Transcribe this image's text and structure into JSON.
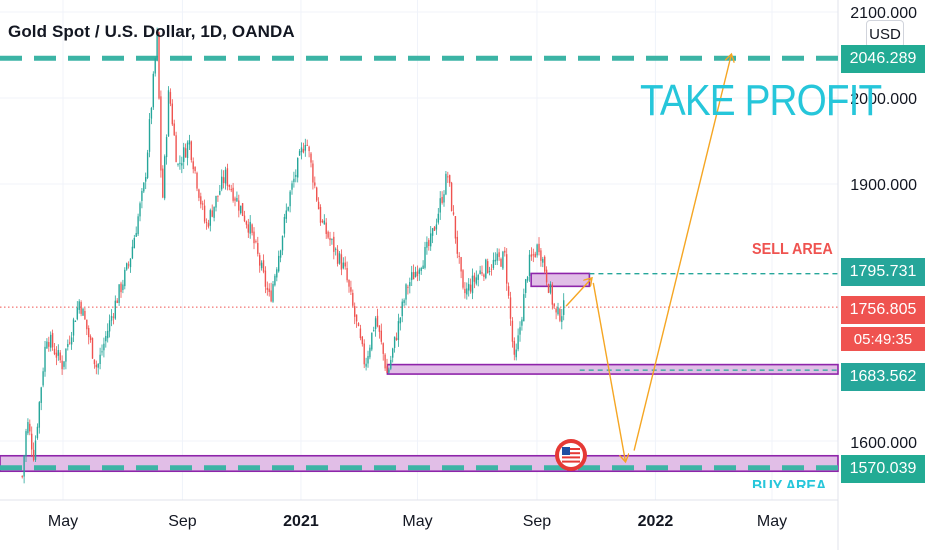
{
  "title": "Gold Spot / U.S. Dollar, 1D, OANDA",
  "currency_button": "USD",
  "annotations": {
    "take_profit": "TAKE PROFIT",
    "sell_area": "SELL AREA",
    "buy_area": "BUY AREA"
  },
  "price_tags": {
    "target": "2046.289",
    "sell": "1795.731",
    "last": "1756.805",
    "countdown": "05:49:35",
    "support": "1683.562",
    "buy": "1570.039"
  },
  "colors": {
    "up": "#26a69a",
    "down": "#ef5350",
    "zone_fill": "#e1bee7",
    "zone_border": "#8e24aa",
    "arrow": "#f5a623",
    "target_line": "#3cb4a5",
    "take_profit_text": "#26c6da"
  },
  "chart_data": {
    "type": "candlestick",
    "title": "Gold Spot / U.S. Dollar, 1D, OANDA",
    "x_tick_labels": [
      "May",
      "Sep",
      "2021",
      "May",
      "Sep",
      "2022",
      "May"
    ],
    "y_tick_labels": [
      "2100.000",
      "2000.000",
      "1900.000",
      "1600.000"
    ],
    "y_range": [
      1545,
      2110
    ],
    "series_path": [
      [
        "2020-03-20",
        1560
      ],
      [
        "2020-03-25",
        1625
      ],
      [
        "2020-04-01",
        1585
      ],
      [
        "2020-04-14",
        1725
      ],
      [
        "2020-04-30",
        1690
      ],
      [
        "2020-05-18",
        1765
      ],
      [
        "2020-06-05",
        1685
      ],
      [
        "2020-06-22",
        1755
      ],
      [
        "2020-07-08",
        1808
      ],
      [
        "2020-07-24",
        1900
      ],
      [
        "2020-08-06",
        2072
      ],
      [
        "2020-08-11",
        1870
      ],
      [
        "2020-08-18",
        2010
      ],
      [
        "2020-08-27",
        1920
      ],
      [
        "2020-09-08",
        1950
      ],
      [
        "2020-09-25",
        1850
      ],
      [
        "2020-10-15",
        1910
      ],
      [
        "2020-11-09",
        1850
      ],
      [
        "2020-11-30",
        1765
      ],
      [
        "2020-12-20",
        1885
      ],
      [
        "2021-01-06",
        1955
      ],
      [
        "2021-01-22",
        1855
      ],
      [
        "2021-02-15",
        1800
      ],
      [
        "2021-03-08",
        1690
      ],
      [
        "2021-03-19",
        1745
      ],
      [
        "2021-03-31",
        1678
      ],
      [
        "2021-04-20",
        1780
      ],
      [
        "2021-05-14",
        1830
      ],
      [
        "2021-06-01",
        1912
      ],
      [
        "2021-06-17",
        1770
      ],
      [
        "2021-07-06",
        1800
      ],
      [
        "2021-07-30",
        1815
      ],
      [
        "2021-08-09",
        1688
      ],
      [
        "2021-08-23",
        1805
      ],
      [
        "2021-09-03",
        1830
      ],
      [
        "2021-09-21",
        1745
      ],
      [
        "2021-09-30",
        1757
      ]
    ],
    "zones": [
      {
        "label": "SELL AREA",
        "from_date": "2021-08-26",
        "to_date": "2021-10-25",
        "top": 1796,
        "bottom": 1781
      },
      {
        "label": "support",
        "from_date": "2021-03-31",
        "to_date": "chart-edge",
        "top": 1690,
        "bottom": 1679
      },
      {
        "label": "BUY AREA",
        "from_date": "chart-start",
        "to_date": "chart-edge",
        "top": 1584,
        "bottom": 1566
      }
    ],
    "levels": [
      {
        "label": "target",
        "value": 2046.289,
        "style": "dashed"
      },
      {
        "label": "sell",
        "value": 1795.731,
        "style": "dashed"
      },
      {
        "label": "last",
        "value": 1756.805,
        "style": "dotted"
      },
      {
        "label": "support",
        "value": 1683.562,
        "style": "dashed"
      },
      {
        "label": "buy",
        "value": 1570.039,
        "style": "dashed"
      }
    ],
    "projection_arrows": [
      {
        "from": [
          "2021-10-01",
          1758
        ],
        "to": [
          "2021-10-27",
          1790
        ]
      },
      {
        "from": [
          "2021-10-29",
          1785
        ],
        "to": [
          "2021-12-01",
          1578
        ]
      },
      {
        "from": [
          "2021-12-10",
          1590
        ],
        "to": [
          "2022-03-20",
          2050
        ]
      }
    ]
  }
}
